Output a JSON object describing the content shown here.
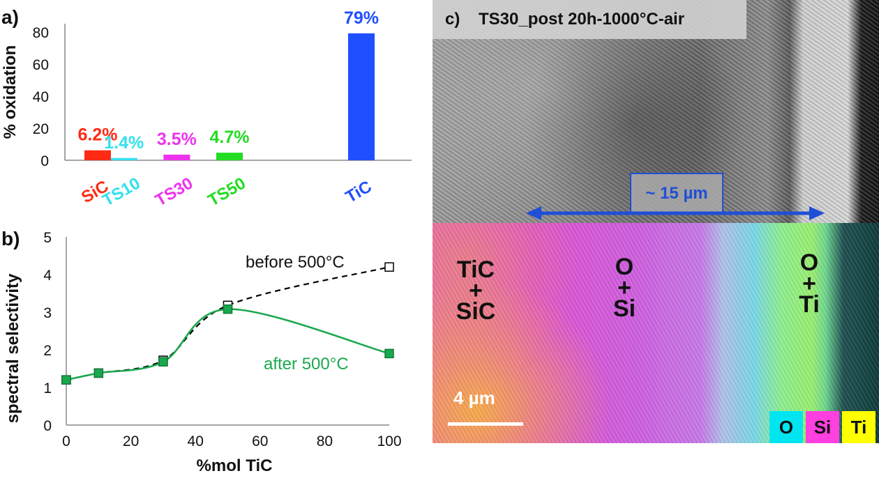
{
  "panel_a": {
    "label": "a)",
    "ylabel": "% oxidation",
    "yticks": [
      "0",
      "20",
      "40",
      "60",
      "80"
    ]
  },
  "panel_b": {
    "label": "b)",
    "ylabel": "spectral selectivity",
    "xlabel": "%mol TiC",
    "yticks": [
      "0",
      "1",
      "2",
      "3",
      "4",
      "5"
    ],
    "xticks": [
      "0",
      "20",
      "40",
      "60",
      "80",
      "100"
    ],
    "before_label": "before 500°C",
    "after_label": "after 500°C"
  },
  "panel_c": {
    "label": "c)",
    "title": "TS30_post 20h-1000°C-air",
    "scale_label": "~ 15 µm",
    "map_scale_label": "4 µm",
    "region_left": [
      "TiC",
      "+",
      "SiC"
    ],
    "region_mid": [
      "O",
      "+",
      "Si"
    ],
    "region_right": [
      "O",
      "+",
      "Ti"
    ],
    "legend": [
      {
        "label": "O",
        "color": "#00e5f0"
      },
      {
        "label": "Si",
        "color": "#ff3fe0"
      },
      {
        "label": "Ti",
        "color": "#ffff00"
      }
    ]
  },
  "chart_data": [
    {
      "type": "bar",
      "categories": [
        "SiC",
        "TS10",
        "TS30",
        "TS50",
        "TiC"
      ],
      "values": [
        6.2,
        1.4,
        3.5,
        4.7,
        79
      ],
      "data_labels": [
        "6.2%",
        "1.4%",
        "3.5%",
        "4.7%",
        "79%"
      ],
      "x_positions": [
        0,
        10,
        30,
        50,
        100
      ],
      "colors": [
        "#ff2a14",
        "#33e0ee",
        "#ee33ee",
        "#22dd22",
        "#1f4fff"
      ],
      "ylabel": "% oxidation",
      "ylim": [
        0,
        85
      ],
      "grid": false
    },
    {
      "type": "line",
      "x": [
        0,
        10,
        30,
        50,
        100
      ],
      "series": [
        {
          "name": "before 500°C",
          "values": [
            1.2,
            1.38,
            1.72,
            3.18,
            4.2
          ],
          "color": "#000000",
          "style": "dashed",
          "marker": "open-square"
        },
        {
          "name": "after 500°C",
          "values": [
            1.2,
            1.38,
            1.68,
            3.08,
            1.9
          ],
          "color": "#1aa84e",
          "style": "solid-smooth",
          "marker": "filled-square"
        }
      ],
      "xlabel": "%mol TiC",
      "ylabel": "spectral selectivity",
      "xlim": [
        0,
        100
      ],
      "ylim": [
        0,
        5
      ],
      "grid": false
    }
  ]
}
